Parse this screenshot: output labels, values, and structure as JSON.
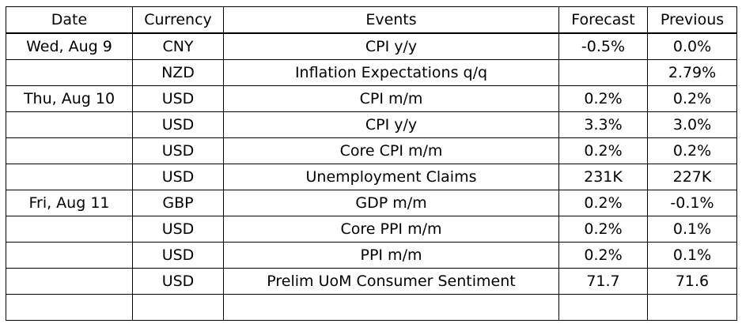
{
  "headers": {
    "date": "Date",
    "currency": "Currency",
    "events": "Events",
    "forecast": "Forecast",
    "previous": "Previous"
  },
  "rows": [
    {
      "date": "Wed, Aug 9",
      "currency": "CNY",
      "event": "CPI y/y",
      "forecast": "-0.5%",
      "previous": "0.0%"
    },
    {
      "date": "",
      "currency": "NZD",
      "event": "Inflation Expectations q/q",
      "forecast": "",
      "previous": "2.79%"
    },
    {
      "date": "Thu, Aug 10",
      "currency": "USD",
      "event": "CPI m/m",
      "forecast": "0.2%",
      "previous": "0.2%"
    },
    {
      "date": "",
      "currency": "USD",
      "event": "CPI y/y",
      "forecast": "3.3%",
      "previous": "3.0%"
    },
    {
      "date": "",
      "currency": "USD",
      "event": "Core CPI m/m",
      "forecast": "0.2%",
      "previous": "0.2%"
    },
    {
      "date": "",
      "currency": "USD",
      "event": "Unemployment Claims",
      "forecast": "231K",
      "previous": "227K"
    },
    {
      "date": "Fri, Aug 11",
      "currency": "GBP",
      "event": "GDP m/m",
      "forecast": "0.2%",
      "previous": "-0.1%"
    },
    {
      "date": "",
      "currency": "USD",
      "event": "Core PPI m/m",
      "forecast": "0.2%",
      "previous": "0.1%"
    },
    {
      "date": "",
      "currency": "USD",
      "event": "PPI m/m",
      "forecast": "0.2%",
      "previous": "0.1%"
    },
    {
      "date": "",
      "currency": "USD",
      "event": "Prelim UoM Consumer Sentiment",
      "forecast": "71.7",
      "previous": "71.6"
    },
    {
      "date": "",
      "currency": "",
      "event": "",
      "forecast": "",
      "previous": ""
    }
  ]
}
